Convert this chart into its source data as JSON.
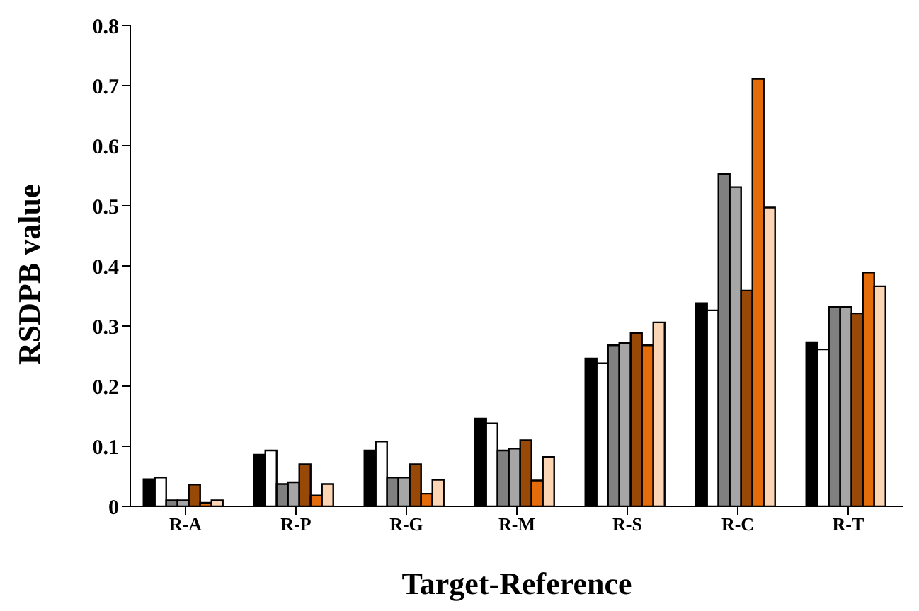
{
  "chart_data": {
    "type": "bar",
    "xlabel": "Target-Reference",
    "ylabel": "RSDPB value",
    "categories": [
      "R-A",
      "R-P",
      "R-G",
      "R-M",
      "R-S",
      "R-C",
      "R-T"
    ],
    "series": [
      {
        "color": "#000000",
        "values": [
          0.045,
          0.086,
          0.093,
          0.146,
          0.246,
          0.338,
          0.273
        ]
      },
      {
        "color": "#ffffff",
        "values": [
          0.048,
          0.093,
          0.108,
          0.138,
          0.238,
          0.326,
          0.261
        ]
      },
      {
        "color": "#808080",
        "values": [
          0.01,
          0.037,
          0.048,
          0.093,
          0.268,
          0.553,
          0.332
        ]
      },
      {
        "color": "#a6a6a6",
        "values": [
          0.01,
          0.04,
          0.048,
          0.096,
          0.272,
          0.531,
          0.332
        ]
      },
      {
        "color": "#984807",
        "values": [
          0.036,
          0.07,
          0.07,
          0.11,
          0.288,
          0.359,
          0.321
        ]
      },
      {
        "color": "#e46c0a",
        "values": [
          0.006,
          0.018,
          0.021,
          0.043,
          0.268,
          0.711,
          0.389
        ]
      },
      {
        "color": "#fcd5b5",
        "values": [
          0.01,
          0.037,
          0.044,
          0.082,
          0.306,
          0.497,
          0.366
        ]
      }
    ],
    "ylim": [
      0,
      0.8
    ],
    "yticks": [
      0,
      0.1,
      0.2,
      0.3,
      0.4,
      0.5,
      0.6,
      0.7,
      0.8
    ],
    "grid": false
  }
}
